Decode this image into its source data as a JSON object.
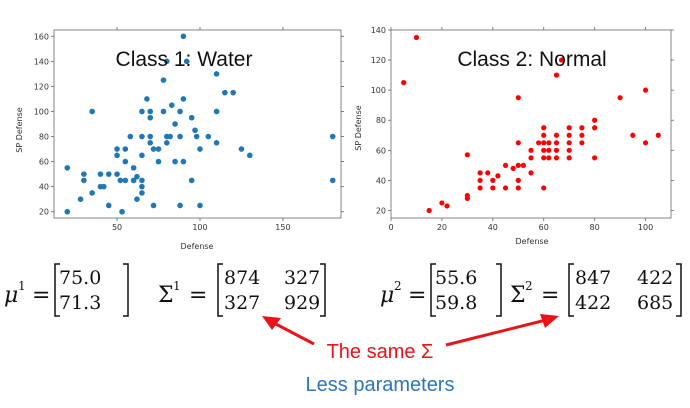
{
  "chart_data": [
    {
      "type": "scatter",
      "title": "Class 1: Water",
      "xlabel": "Defense",
      "ylabel": "SP Defense",
      "xlim": [
        12,
        185
      ],
      "ylim": [
        15,
        165
      ],
      "xticks": [
        50,
        100,
        150
      ],
      "yticks": [
        20,
        40,
        60,
        80,
        100,
        120,
        140,
        160
      ],
      "color": "#1f77b4",
      "points": [
        [
          20,
          55
        ],
        [
          20,
          20
        ],
        [
          28,
          30
        ],
        [
          30,
          45
        ],
        [
          30,
          50
        ],
        [
          35,
          100
        ],
        [
          35,
          35
        ],
        [
          40,
          50
        ],
        [
          40,
          40
        ],
        [
          42,
          40
        ],
        [
          45,
          25
        ],
        [
          45,
          50
        ],
        [
          50,
          65
        ],
        [
          50,
          50
        ],
        [
          50,
          70
        ],
        [
          52,
          45
        ],
        [
          53,
          20
        ],
        [
          55,
          45
        ],
        [
          55,
          70
        ],
        [
          55,
          60
        ],
        [
          58,
          80
        ],
        [
          60,
          55
        ],
        [
          60,
          45
        ],
        [
          62,
          48
        ],
        [
          62,
          30
        ],
        [
          65,
          100
        ],
        [
          65,
          80
        ],
        [
          65,
          65
        ],
        [
          65,
          45
        ],
        [
          65,
          40
        ],
        [
          65,
          35
        ],
        [
          68,
          110
        ],
        [
          70,
          75
        ],
        [
          70,
          80
        ],
        [
          70,
          100
        ],
        [
          70,
          95
        ],
        [
          72,
          70
        ],
        [
          72,
          25
        ],
        [
          75,
          60
        ],
        [
          75,
          70
        ],
        [
          78,
          100
        ],
        [
          78,
          125
        ],
        [
          80,
          80
        ],
        [
          80,
          140
        ],
        [
          80,
          75
        ],
        [
          82,
          80
        ],
        [
          83,
          105
        ],
        [
          85,
          60
        ],
        [
          85,
          90
        ],
        [
          88,
          100
        ],
        [
          88,
          80
        ],
        [
          88,
          25
        ],
        [
          90,
          60
        ],
        [
          90,
          160
        ],
        [
          90,
          110
        ],
        [
          92,
          140
        ],
        [
          95,
          45
        ],
        [
          95,
          95
        ],
        [
          97,
          85
        ],
        [
          98,
          80
        ],
        [
          100,
          25
        ],
        [
          100,
          70
        ],
        [
          105,
          80
        ],
        [
          110,
          100
        ],
        [
          110,
          75
        ],
        [
          110,
          130
        ],
        [
          115,
          115
        ],
        [
          120,
          115
        ],
        [
          125,
          70
        ],
        [
          130,
          65
        ],
        [
          180,
          80
        ],
        [
          180,
          45
        ]
      ]
    },
    {
      "type": "scatter",
      "title": "Class 2: Normal",
      "xlabel": "Defense",
      "ylabel": "SP Defense",
      "xlim": [
        0,
        110
      ],
      "ylim": [
        15,
        140
      ],
      "xticks": [
        0,
        20,
        40,
        60,
        80,
        100
      ],
      "yticks": [
        20,
        40,
        60,
        80,
        100,
        120,
        140
      ],
      "color": "#ff0000",
      "points": [
        [
          5,
          105
        ],
        [
          10,
          135
        ],
        [
          15,
          20
        ],
        [
          20,
          25
        ],
        [
          22,
          23
        ],
        [
          30,
          30
        ],
        [
          30,
          28
        ],
        [
          30,
          57
        ],
        [
          35,
          40
        ],
        [
          35,
          35
        ],
        [
          35,
          45
        ],
        [
          38,
          45
        ],
        [
          40,
          35
        ],
        [
          40,
          40
        ],
        [
          42,
          43
        ],
        [
          45,
          35
        ],
        [
          45,
          50
        ],
        [
          48,
          48
        ],
        [
          50,
          35
        ],
        [
          50,
          40
        ],
        [
          50,
          65
        ],
        [
          50,
          95
        ],
        [
          50,
          50
        ],
        [
          52,
          50
        ],
        [
          55,
          60
        ],
        [
          55,
          55
        ],
        [
          55,
          45
        ],
        [
          58,
          65
        ],
        [
          60,
          75
        ],
        [
          60,
          70
        ],
        [
          60,
          65
        ],
        [
          60,
          60
        ],
        [
          60,
          55
        ],
        [
          60,
          35
        ],
        [
          62,
          65
        ],
        [
          62,
          60
        ],
        [
          62,
          55
        ],
        [
          65,
          110
        ],
        [
          65,
          70
        ],
        [
          65,
          65
        ],
        [
          65,
          60
        ],
        [
          65,
          55
        ],
        [
          67,
          120
        ],
        [
          70,
          75
        ],
        [
          70,
          70
        ],
        [
          70,
          65
        ],
        [
          70,
          60
        ],
        [
          70,
          55
        ],
        [
          75,
          75
        ],
        [
          75,
          70
        ],
        [
          75,
          65
        ],
        [
          80,
          80
        ],
        [
          80,
          75
        ],
        [
          80,
          55
        ],
        [
          90,
          95
        ],
        [
          95,
          70
        ],
        [
          100,
          100
        ],
        [
          100,
          65
        ],
        [
          105,
          70
        ]
      ]
    }
  ],
  "formulas": {
    "mu1": {
      "symbol": "μ",
      "sup": "1",
      "values": [
        "75.0",
        "71.3"
      ]
    },
    "sigma1": {
      "symbol": "Σ",
      "sup": "1",
      "values": [
        "874",
        "327",
        "327",
        "929"
      ]
    },
    "mu2": {
      "symbol": "μ",
      "sup": "2",
      "values": [
        "55.6",
        "59.8"
      ]
    },
    "sigma2": {
      "symbol": "Σ",
      "sup": "2",
      "values": [
        "847",
        "422",
        "422",
        "685"
      ]
    }
  },
  "annotation": {
    "same_sigma": "The same Σ",
    "less_params": "Less parameters",
    "same_color": "#e8141a",
    "less_color": "#2e75b6"
  }
}
